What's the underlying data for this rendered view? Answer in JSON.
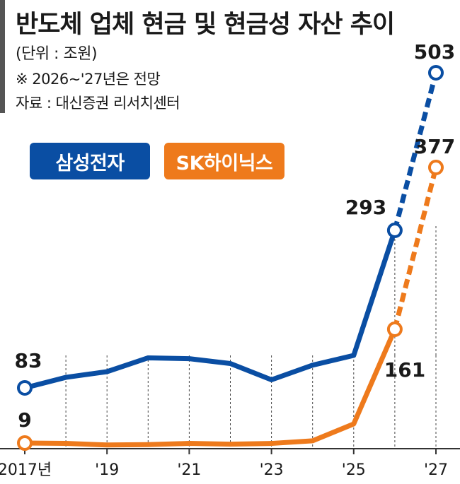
{
  "header": {
    "title": "반도체 업체 현금 및 현금성 자산 추이",
    "unit": "(단위 : 조원)",
    "note": "※ 2026~'27년은 전망",
    "source": "자료 : 대신증권 리서치센터"
  },
  "colors": {
    "samsung": "#0a4ea3",
    "skhynix": "#ee7a1c",
    "grid": "#444444",
    "axis": "#333333"
  },
  "chart_data": {
    "type": "line",
    "title": "반도체 업체 현금 및 현금성 자산 추이",
    "xlabel": "",
    "ylabel": "(단위 : 조원)",
    "x": [
      2017,
      2018,
      2019,
      2020,
      2021,
      2022,
      2023,
      2024,
      2025,
      2026,
      2027
    ],
    "x_tick_labels": [
      {
        "x": 2017,
        "label": "2017년"
      },
      {
        "x": 2019,
        "label": "'19"
      },
      {
        "x": 2021,
        "label": "'21"
      },
      {
        "x": 2023,
        "label": "'23"
      },
      {
        "x": 2025,
        "label": "'25"
      },
      {
        "x": 2027,
        "label": "'27"
      }
    ],
    "forecast_from": 2025,
    "ylim": [
      0,
      520
    ],
    "grid": "vertical dashed",
    "legend": "top-left",
    "series": [
      {
        "name": "삼성전자",
        "color": "#0a4ea3",
        "values": [
          83,
          96,
          103,
          120,
          119,
          113,
          93,
          111,
          123,
          293,
          503
        ],
        "labels": [
          {
            "x": 2017,
            "text": "83"
          },
          {
            "x": 2026,
            "text": "293"
          },
          {
            "x": 2027,
            "text": "503"
          }
        ]
      },
      {
        "name": "SK하이닉스",
        "color": "#ee7a1c",
        "values": [
          9,
          8,
          4,
          5,
          8,
          6,
          8,
          12,
          35,
          161,
          377
        ],
        "labels": [
          {
            "x": 2017,
            "text": "9"
          },
          {
            "x": 2026,
            "text": "161"
          },
          {
            "x": 2027,
            "text": "377"
          }
        ]
      }
    ]
  }
}
